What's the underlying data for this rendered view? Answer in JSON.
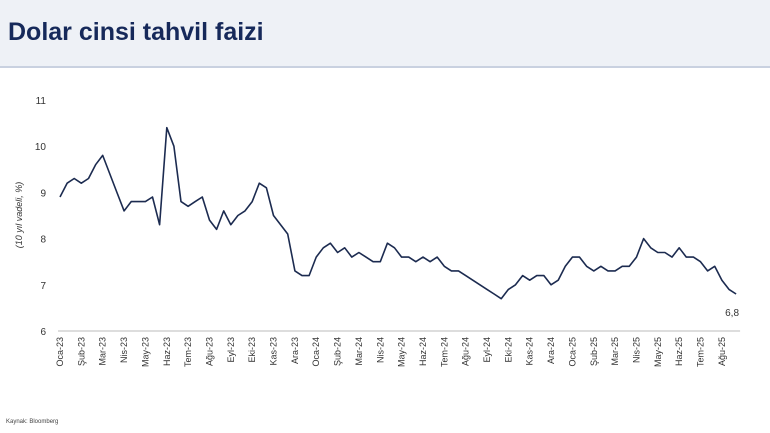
{
  "chart_data": {
    "type": "line",
    "title": "Dolar cinsi tahvil faizi",
    "y_label": "(10 yıl vadeli, %)",
    "source": "Kaynak: Bloomberg",
    "color": "#1c2b50",
    "categories": [
      "Oca-23",
      null,
      null,
      "Şub-23",
      null,
      null,
      "Mar-23",
      null,
      null,
      "Nis-23",
      null,
      null,
      "May-23",
      null,
      null,
      "Haz-23",
      null,
      null,
      "Tem-23",
      null,
      null,
      "Ağu-23",
      null,
      null,
      "Eyl-23",
      null,
      null,
      "Eki-23",
      null,
      null,
      "Kas-23",
      null,
      null,
      "Ara-23",
      null,
      null,
      "Oca-24",
      null,
      null,
      "Şub-24",
      null,
      null,
      "Mar-24",
      null,
      null,
      "Nis-24",
      null,
      null,
      "May-24",
      null,
      null,
      "Haz-24",
      null,
      null,
      "Tem-24",
      null,
      null,
      "Ağu-24",
      null,
      null,
      "Eyl-24",
      null,
      null,
      "Eki-24",
      null,
      null,
      "Kas-24",
      null,
      null,
      "Ara-24",
      null,
      null,
      "Oca-25",
      null,
      null,
      "Şub-25",
      null,
      null,
      "Mar-25",
      null,
      null,
      "Nis-25",
      null,
      null,
      "May-25",
      null,
      null,
      "Haz-25",
      null,
      null,
      "Tem-25",
      null,
      null,
      "Ağu-25",
      null,
      null
    ],
    "values": [
      8.9,
      9.2,
      9.3,
      9.2,
      9.3,
      9.6,
      9.8,
      9.4,
      9.0,
      8.6,
      8.8,
      8.8,
      8.8,
      8.9,
      8.3,
      10.4,
      10.0,
      8.8,
      8.7,
      8.8,
      8.9,
      8.4,
      8.2,
      8.6,
      8.3,
      8.5,
      8.6,
      8.8,
      9.2,
      9.1,
      8.5,
      8.3,
      8.1,
      7.3,
      7.2,
      7.2,
      7.6,
      7.8,
      7.9,
      7.7,
      7.8,
      7.6,
      7.7,
      7.6,
      7.5,
      7.5,
      7.9,
      7.8,
      7.6,
      7.6,
      7.5,
      7.6,
      7.5,
      7.6,
      7.4,
      7.3,
      7.3,
      7.2,
      7.1,
      7.0,
      6.9,
      6.8,
      6.7,
      6.9,
      7.0,
      7.2,
      7.1,
      7.2,
      7.2,
      7.0,
      7.1,
      7.4,
      7.6,
      7.6,
      7.4,
      7.3,
      7.4,
      7.3,
      7.3,
      7.4,
      7.4,
      7.6,
      8.0,
      7.8,
      7.7,
      7.7,
      7.6,
      7.8,
      7.6,
      7.6,
      7.5,
      7.3,
      7.4,
      7.1,
      6.9,
      6.8
    ],
    "value_labels": [
      null,
      null,
      null,
      null,
      null,
      null,
      null,
      null,
      null,
      null,
      null,
      null,
      null,
      null,
      null,
      null,
      null,
      null,
      null,
      null,
      null,
      null,
      null,
      null,
      null,
      null,
      null,
      null,
      null,
      null,
      null,
      null,
      null,
      null,
      null,
      null,
      null,
      null,
      null,
      null,
      null,
      null,
      null,
      null,
      null,
      null,
      null,
      null,
      null,
      null,
      null,
      null,
      null,
      null,
      null,
      null,
      null,
      null,
      null,
      null,
      null,
      null,
      null,
      null,
      null,
      null,
      null,
      null,
      null,
      null,
      null,
      null,
      null,
      null,
      null,
      null,
      null,
      null,
      null,
      null,
      null,
      null,
      null,
      null,
      null,
      null,
      null,
      null,
      null,
      null,
      null,
      null,
      null,
      null,
      null,
      "6,8"
    ],
    "ylim": [
      6,
      11
    ],
    "yticks": [
      6,
      7,
      8,
      9,
      10,
      11
    ]
  }
}
